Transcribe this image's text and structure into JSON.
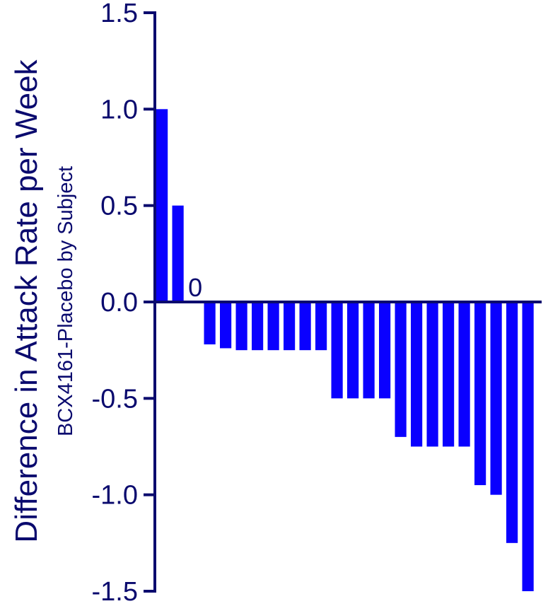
{
  "chart_data": {
    "type": "bar",
    "title": "",
    "ylabel": "Difference in Attack Rate per Week",
    "ylabel_sub": "BCX4161-Placebo by Subject",
    "xlabel": "",
    "ylim": [
      -1.5,
      1.5
    ],
    "yticks": [
      1.5,
      1.0,
      0.5,
      0.0,
      -0.5,
      -1.0,
      -1.5
    ],
    "ytick_labels": [
      "1.5",
      "1.0",
      "0.5",
      "0.0",
      "-0.5",
      "-1.0",
      "-1.5"
    ],
    "values": [
      1.0,
      0.5,
      0,
      -0.22,
      -0.24,
      -0.25,
      -0.25,
      -0.25,
      -0.25,
      -0.25,
      -0.25,
      -0.5,
      -0.5,
      -0.5,
      -0.5,
      -0.7,
      -0.75,
      -0.75,
      -0.75,
      -0.75,
      -0.95,
      -1.0,
      -1.25,
      -1.5
    ],
    "annotations": [
      {
        "bar_index": 2,
        "text": "0"
      }
    ],
    "colors": {
      "bar": "#0a00ff",
      "axis": "#0a0a6e",
      "text": "#0a0a6e"
    },
    "grid": false,
    "legend": "none"
  }
}
